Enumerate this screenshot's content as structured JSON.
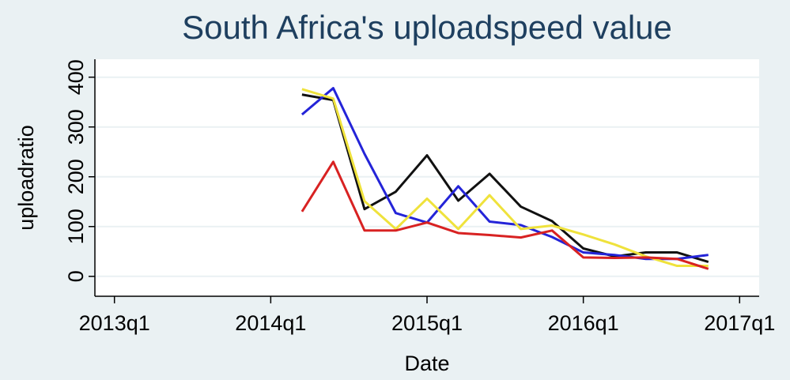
{
  "chart_data": {
    "type": "line",
    "title": "South Africa's uploadspeed value",
    "x_label": "Date",
    "y_label": "uploadratio",
    "x": [
      216.8,
      217.6,
      218.4,
      219.2,
      220.0,
      220.8,
      221.6,
      222.4,
      223.2,
      224.0,
      224.8,
      225.6,
      226.4,
      227.2
    ],
    "xlim": [
      211.5,
      228.5
    ],
    "xticks": [
      {
        "value": 212,
        "label": "2013q1"
      },
      {
        "value": 216,
        "label": "2014q1"
      },
      {
        "value": 220,
        "label": "2015q1"
      },
      {
        "value": 224,
        "label": "2016q1"
      },
      {
        "value": 228,
        "label": "2017q1"
      }
    ],
    "ylim": [
      -40,
      436
    ],
    "yticks": [
      0,
      100,
      200,
      300,
      400
    ],
    "grid": true,
    "series": [
      {
        "color": "#111111",
        "values": [
          365,
          354,
          135,
          170,
          243,
          152,
          206,
          140,
          111,
          56,
          40,
          48,
          48,
          29
        ]
      },
      {
        "color": "#2424d8",
        "values": [
          325,
          378,
          246,
          127,
          108,
          181,
          110,
          103,
          79,
          48,
          43,
          35,
          35,
          43
        ]
      },
      {
        "color": "#efe23c",
        "values": [
          376,
          357,
          151,
          95,
          156,
          95,
          163,
          95,
          102,
          84,
          64,
          40,
          21,
          21
        ]
      },
      {
        "color": "#d82222",
        "values": [
          130,
          230,
          92,
          92,
          108,
          87,
          83,
          78,
          92,
          38,
          37,
          38,
          35,
          15
        ]
      }
    ]
  }
}
